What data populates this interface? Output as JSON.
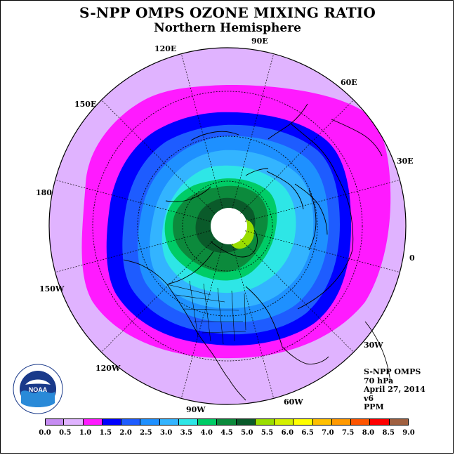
{
  "title": "S-NPP OMPS OZONE MIXING RATIO",
  "subtitle": "Northern Hemisphere",
  "longitude_labels": [
    "120E",
    "90E",
    "60E",
    "150E",
    "30E",
    "180",
    "0",
    "150W",
    "30W",
    "120W",
    "60W",
    "90W"
  ],
  "info": {
    "instrument": "S-NPP OMPS",
    "level": "70 hPa",
    "date": "April 27, 2014",
    "version": "v6",
    "units": "PPM"
  },
  "logo_text": "NOAA",
  "colorbar": {
    "ticks": [
      "0.0",
      "0.5",
      "1.0",
      "1.5",
      "2.0",
      "2.5",
      "3.0",
      "3.5",
      "4.0",
      "4.5",
      "5.0",
      "5.5",
      "6.0",
      "6.5",
      "7.0",
      "7.5",
      "8.0",
      "8.5",
      "9.0"
    ],
    "colors": [
      "#c68cf2",
      "#e0b3ff",
      "#ff1aff",
      "#0000ff",
      "#1e5cff",
      "#1e90ff",
      "#33b4ff",
      "#2ee6e6",
      "#00cc66",
      "#0c8a3c",
      "#0a5a2a",
      "#99dd00",
      "#d4f000",
      "#ffff00",
      "#ffc000",
      "#ff9900",
      "#ff5500",
      "#ff0000",
      "#a06040"
    ]
  },
  "map_colors": {
    "band_0_5": "#e0b3ff",
    "band_1_0": "#ff1aff",
    "band_1_5": "#0000ff",
    "band_2_0": "#1e5cff",
    "band_2_5": "#1e90ff",
    "band_3_0": "#33b4ff",
    "band_3_5": "#2ee6e6",
    "band_4_0": "#00cc66",
    "band_4_5": "#0c8a3c",
    "band_5_0": "#0a5a2a",
    "band_5_5": "#99dd00",
    "pole_no_data": "#ffffff"
  }
}
